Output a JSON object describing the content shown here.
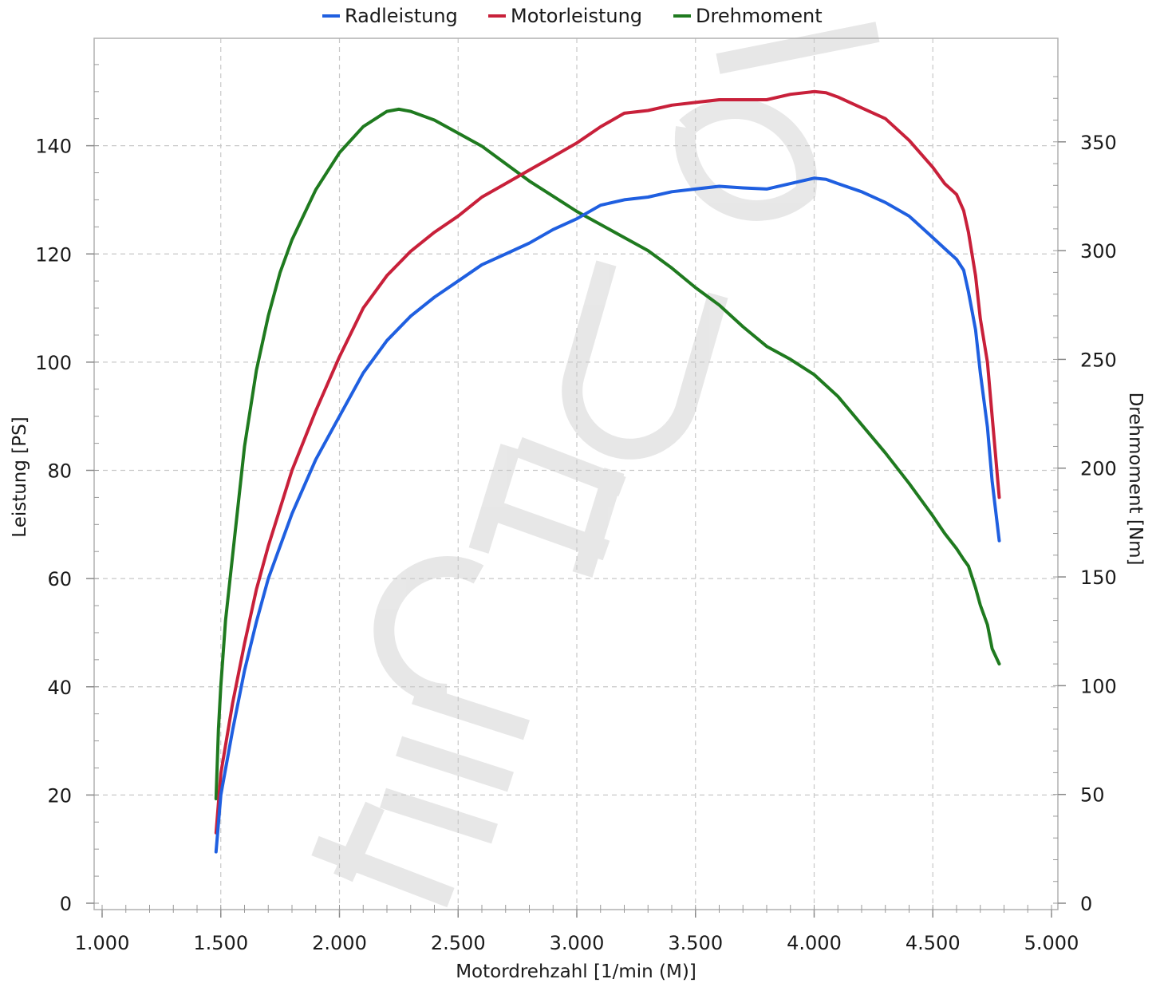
{
  "chart_data": {
    "type": "line",
    "xlabel": "Motordrehzahl [1/min (M)]",
    "ylabel": "Leistung [PS]",
    "y2label": "Drehmoment [Nm]",
    "xlim": [
      1000,
      5000
    ],
    "ylim": [
      0,
      160
    ],
    "y2lim": [
      0,
      380
    ],
    "x_ticks": [
      1000,
      1500,
      2000,
      2500,
      3000,
      3500,
      4000,
      4500,
      5000
    ],
    "x_tick_labels": [
      "1.000",
      "1.500",
      "2.000",
      "2.500",
      "3.000",
      "3.500",
      "4.000",
      "4.500",
      "5.000"
    ],
    "y_ticks": [
      0,
      20,
      40,
      60,
      80,
      100,
      120,
      140
    ],
    "y_tick_labels": [
      "0",
      "20",
      "40",
      "60",
      "80",
      "100",
      "120",
      "140"
    ],
    "y2_ticks": [
      0,
      50,
      100,
      150,
      200,
      250,
      300,
      350
    ],
    "y2_tick_labels": [
      "0",
      "50",
      "100",
      "150",
      "200",
      "250",
      "300",
      "350"
    ],
    "grid": true,
    "legend_position": "top-center",
    "watermark": "TECHU",
    "series": [
      {
        "name": "Radleistung",
        "axis": "left",
        "color": "#1f5fe0",
        "x": [
          1480,
          1500,
          1550,
          1600,
          1650,
          1700,
          1800,
          1900,
          2000,
          2100,
          2200,
          2300,
          2400,
          2500,
          2600,
          2700,
          2800,
          2900,
          3000,
          3100,
          3200,
          3300,
          3400,
          3500,
          3600,
          3700,
          3800,
          3900,
          4000,
          4050,
          4100,
          4200,
          4300,
          4400,
          4500,
          4550,
          4600,
          4630,
          4650,
          4680,
          4700,
          4730,
          4750,
          4780
        ],
        "y": [
          9.5,
          20,
          32,
          43,
          52,
          60,
          72,
          82,
          90,
          98,
          104,
          108.5,
          112,
          115,
          118,
          120,
          122,
          124.5,
          126.5,
          129,
          130,
          130.5,
          131.5,
          132,
          132.5,
          132.2,
          132,
          133,
          134,
          133.8,
          133,
          131.5,
          129.5,
          127,
          123,
          121,
          119,
          117,
          113,
          106,
          98,
          88,
          78,
          67
        ]
      },
      {
        "name": "Motorleistung",
        "axis": "left",
        "color": "#c8203a",
        "x": [
          1480,
          1500,
          1550,
          1600,
          1650,
          1700,
          1800,
          1900,
          2000,
          2100,
          2200,
          2300,
          2400,
          2500,
          2600,
          2700,
          2800,
          2900,
          3000,
          3100,
          3200,
          3300,
          3400,
          3500,
          3600,
          3700,
          3800,
          3900,
          4000,
          4050,
          4100,
          4200,
          4300,
          4400,
          4500,
          4550,
          4600,
          4630,
          4650,
          4680,
          4700,
          4730,
          4750,
          4780
        ],
        "y": [
          13,
          24,
          37,
          48,
          58,
          66,
          80,
          91,
          101,
          110,
          116,
          120.5,
          124,
          127,
          130.5,
          133,
          135.5,
          138,
          140.5,
          143.5,
          146,
          146.5,
          147.5,
          148,
          148.5,
          148.5,
          148.5,
          149.5,
          150,
          149.8,
          149,
          147,
          145,
          141,
          136,
          133,
          131,
          128,
          124,
          116,
          108,
          100,
          90,
          75
        ]
      },
      {
        "name": "Drehmoment",
        "axis": "right",
        "color": "#1f7a1f",
        "x": [
          1480,
          1490,
          1500,
          1520,
          1550,
          1600,
          1650,
          1700,
          1750,
          1800,
          1900,
          2000,
          2100,
          2200,
          2250,
          2300,
          2400,
          2500,
          2600,
          2700,
          2800,
          2900,
          3000,
          3100,
          3200,
          3300,
          3400,
          3500,
          3600,
          3700,
          3800,
          3900,
          4000,
          4100,
          4200,
          4300,
          4400,
          4500,
          4550,
          4600,
          4630,
          4650,
          4680,
          4700,
          4730,
          4750,
          4780
        ],
        "y": [
          48,
          80,
          100,
          130,
          160,
          210,
          245,
          270,
          290,
          305,
          328,
          345,
          357,
          364,
          365,
          364,
          360,
          354,
          348,
          340,
          332,
          325,
          318,
          312,
          306,
          300,
          292,
          283,
          275,
          265,
          256,
          250,
          243,
          233,
          220,
          207,
          193,
          178,
          170,
          163,
          158,
          155,
          145,
          137,
          128,
          117,
          110
        ]
      }
    ]
  }
}
